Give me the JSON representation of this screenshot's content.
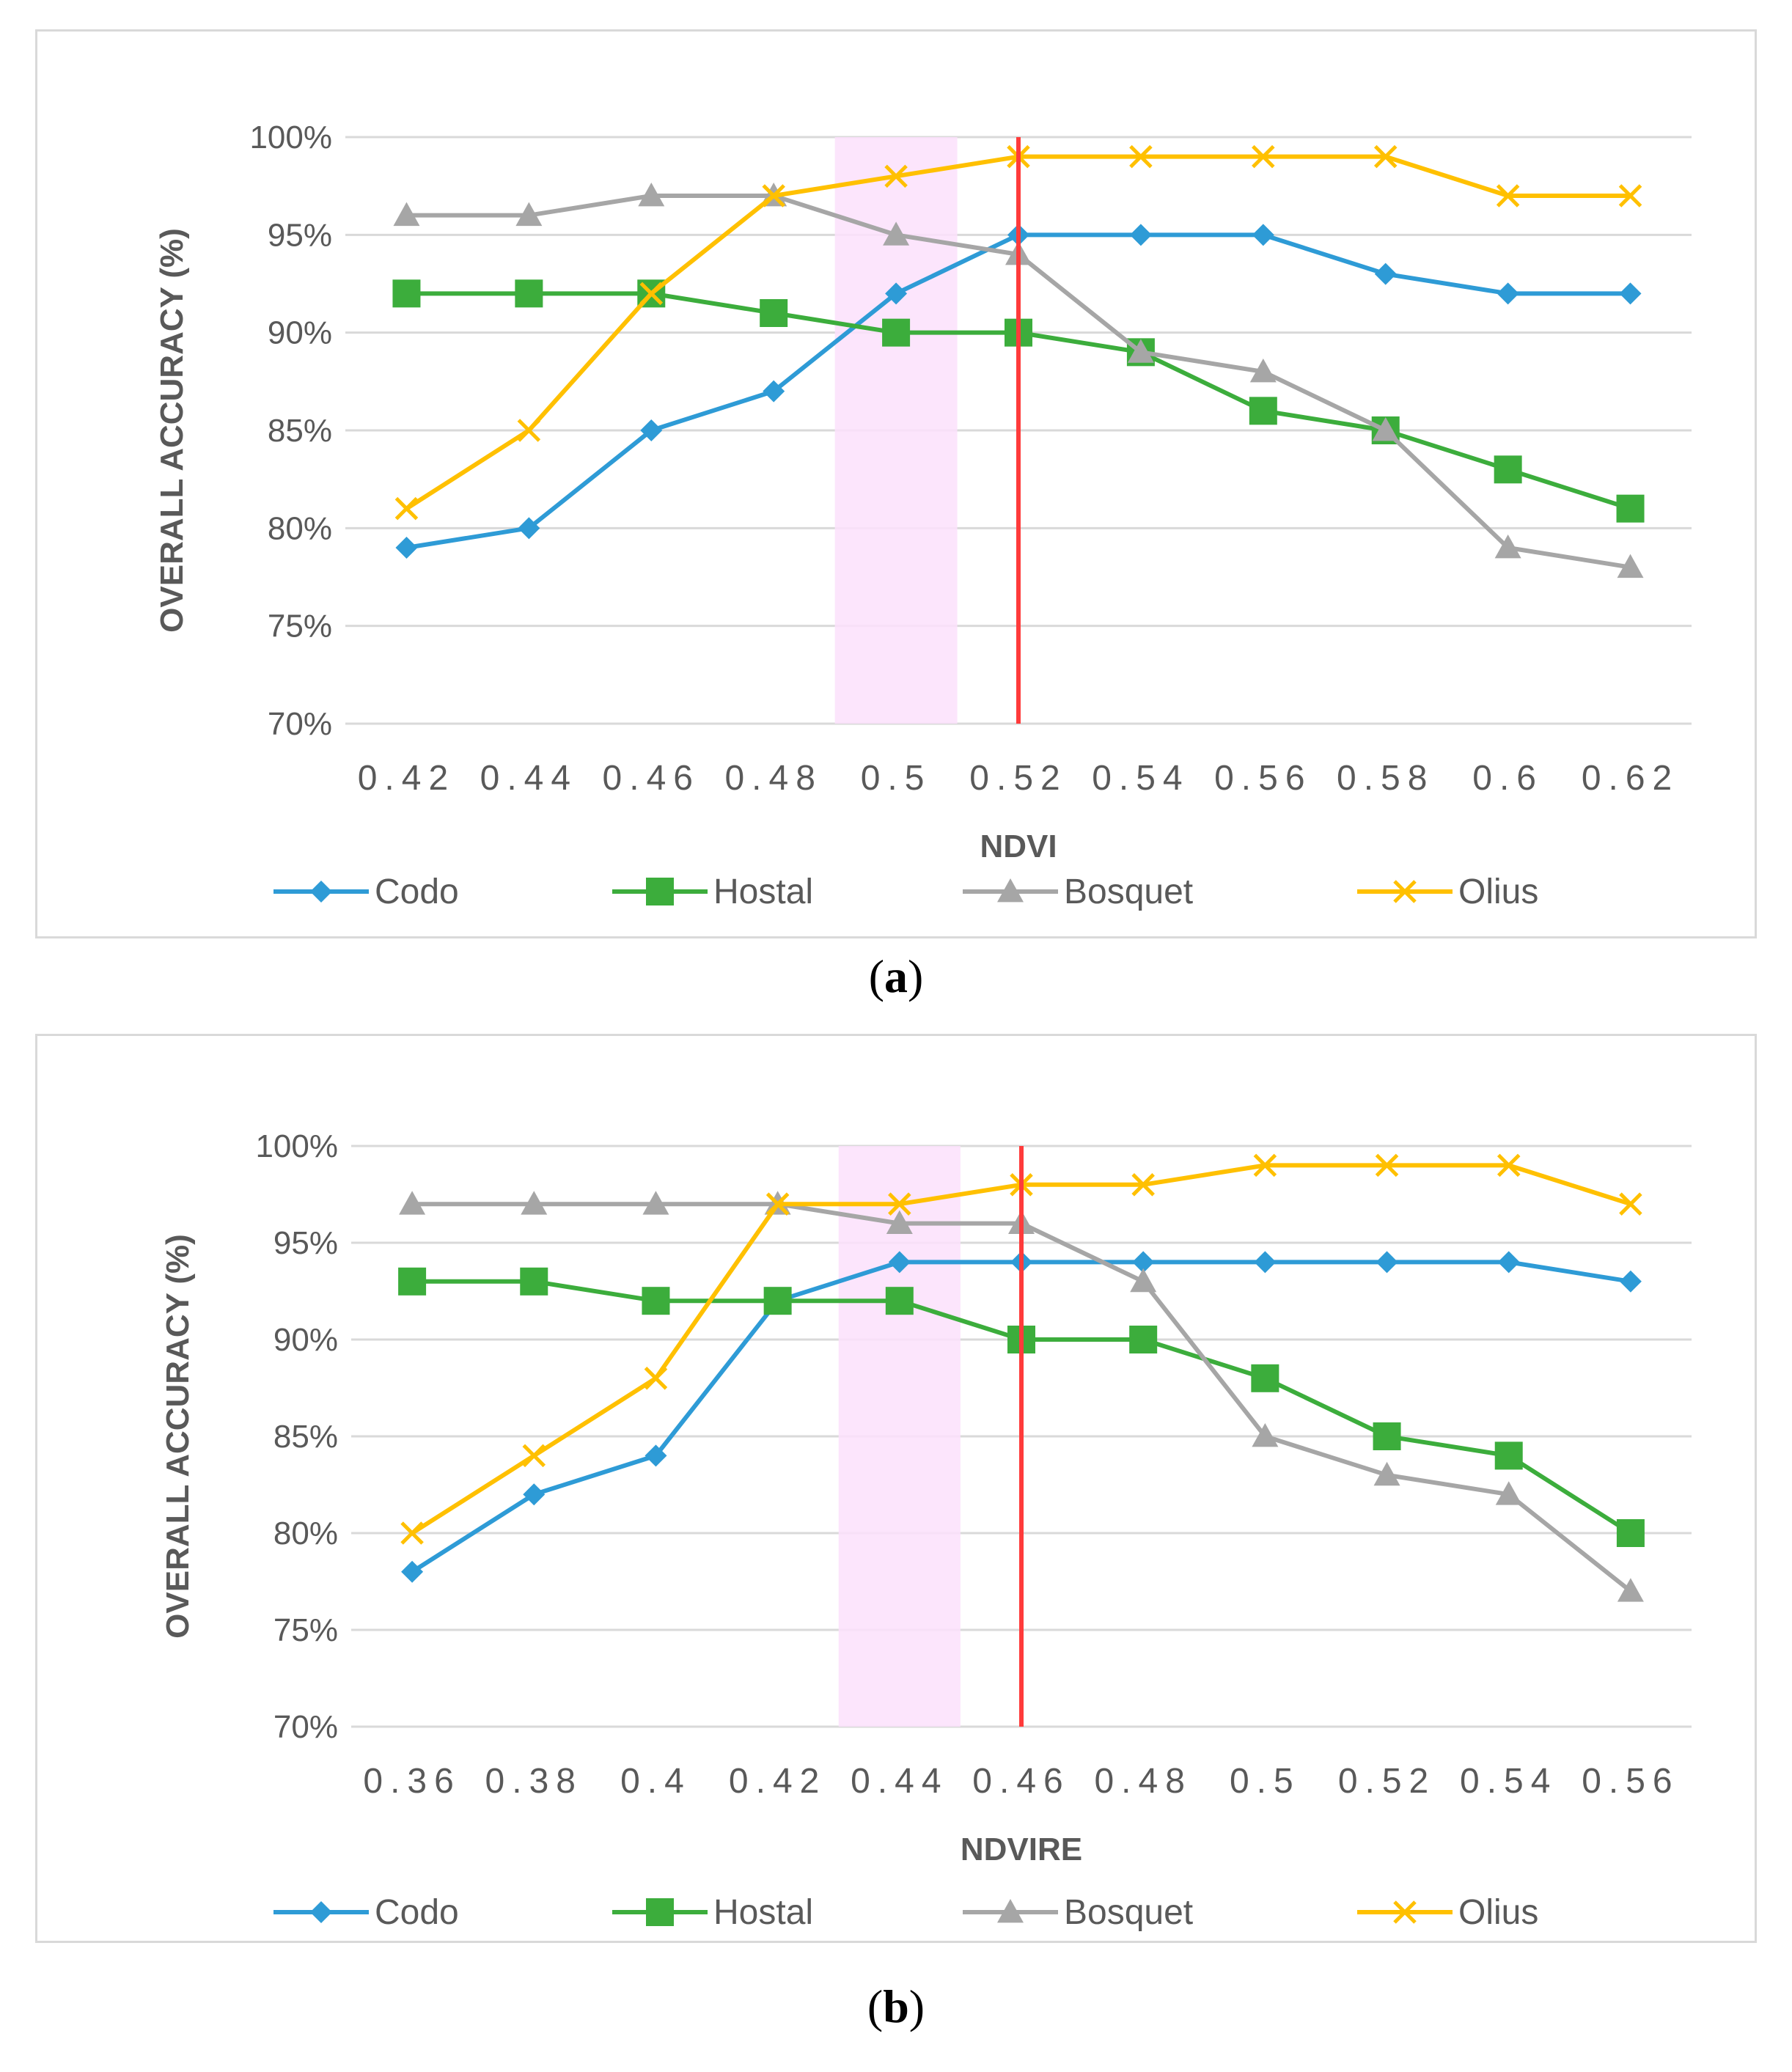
{
  "chart_data": [
    {
      "type": "line",
      "panel_label": "a",
      "xlabel": "NDVI",
      "ylabel": "OVERALL ACCURACY (%)",
      "categories": [
        "0.42",
        "0.44",
        "0.46",
        "0.48",
        "0.5",
        "0.52",
        "0.54",
        "0.56",
        "0.58",
        "0.6",
        "0.62"
      ],
      "yticks": [
        "70%",
        "75%",
        "80%",
        "85%",
        "90%",
        "95%",
        "100%"
      ],
      "ylim": [
        70,
        100
      ],
      "grid": true,
      "legend_position": "bottom",
      "highlight_band": {
        "from": 0.49,
        "to": 0.51,
        "color": "#fbe0fb"
      },
      "marker_line": {
        "x": 0.52,
        "color": "#ff3b3b"
      },
      "series": [
        {
          "name": "Codo",
          "color": "#2e9bd6",
          "marker": "diamond",
          "values": [
            79,
            80,
            85,
            87,
            92,
            95,
            95,
            95,
            93,
            92,
            92
          ]
        },
        {
          "name": "Hostal",
          "color": "#3cad3c",
          "marker": "square",
          "values": [
            92,
            92,
            92,
            91,
            90,
            90,
            89,
            86,
            85,
            83,
            81
          ]
        },
        {
          "name": "Bosquet",
          "color": "#a6a6a6",
          "marker": "triangle",
          "values": [
            96,
            96,
            97,
            97,
            95,
            94,
            89,
            88,
            85,
            79,
            78
          ]
        },
        {
          "name": "Olius",
          "color": "#ffc000",
          "marker": "x",
          "values": [
            81,
            85,
            92,
            97,
            98,
            99,
            99,
            99,
            99,
            97,
            97
          ]
        }
      ]
    },
    {
      "type": "line",
      "panel_label": "b",
      "xlabel": "NDVIRE",
      "ylabel": "OVERALL ACCURACY (%)",
      "categories": [
        "0.36",
        "0.38",
        "0.4",
        "0.42",
        "0.44",
        "0.46",
        "0.48",
        "0.5",
        "0.52",
        "0.54",
        "0.56"
      ],
      "yticks": [
        "70%",
        "75%",
        "80%",
        "85%",
        "90%",
        "95%",
        "100%"
      ],
      "ylim": [
        70,
        100
      ],
      "grid": true,
      "legend_position": "bottom",
      "highlight_band": {
        "from": 0.43,
        "to": 0.45,
        "color": "#fbe0fb"
      },
      "marker_line": {
        "x": 0.46,
        "color": "#ff3b3b"
      },
      "series": [
        {
          "name": "Codo",
          "color": "#2e9bd6",
          "marker": "diamond",
          "values": [
            78,
            82,
            84,
            92,
            94,
            94,
            94,
            94,
            94,
            94,
            93
          ]
        },
        {
          "name": "Hostal",
          "color": "#3cad3c",
          "marker": "square",
          "values": [
            93,
            93,
            92,
            92,
            92,
            90,
            90,
            88,
            85,
            84,
            80
          ]
        },
        {
          "name": "Bosquet",
          "color": "#a6a6a6",
          "marker": "triangle",
          "values": [
            97,
            97,
            97,
            97,
            96,
            96,
            93,
            85,
            83,
            82,
            77
          ]
        },
        {
          "name": "Olius",
          "color": "#ffc000",
          "marker": "x",
          "values": [
            80,
            84,
            88,
            97,
            97,
            98,
            98,
            99,
            99,
            99,
            97
          ]
        }
      ]
    }
  ]
}
